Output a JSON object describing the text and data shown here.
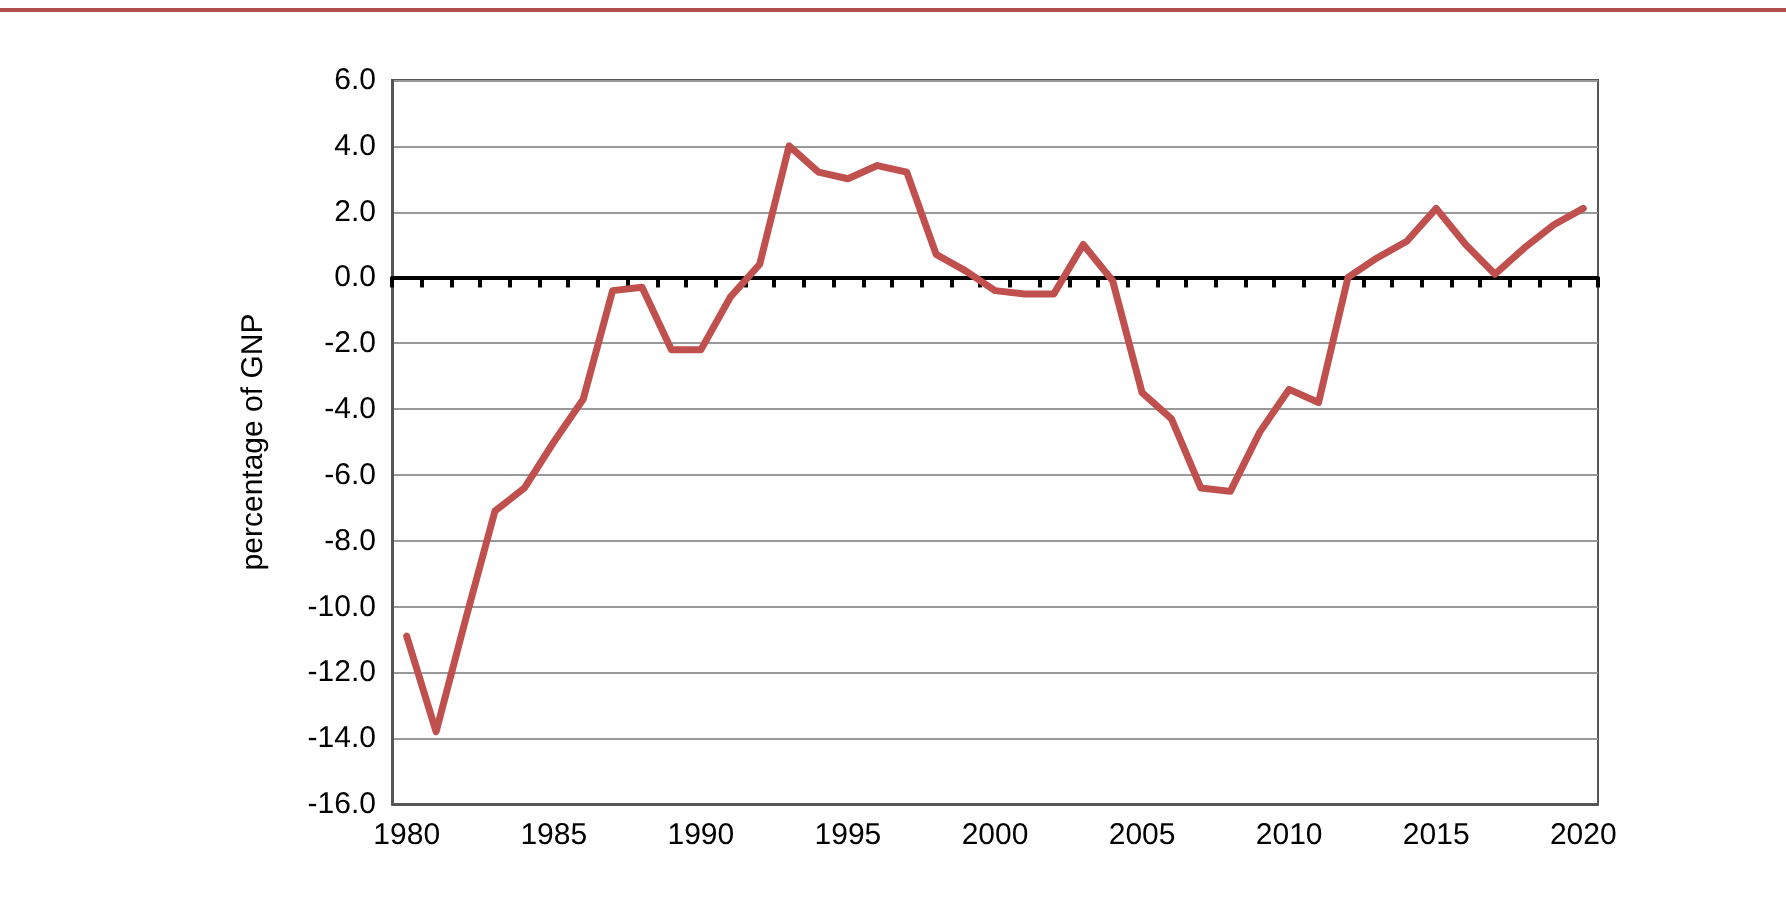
{
  "chart_data": {
    "type": "line",
    "ylabel": "percentage of GNP",
    "x": [
      1980,
      1981,
      1982,
      1983,
      1984,
      1985,
      1986,
      1987,
      1988,
      1989,
      1990,
      1991,
      1992,
      1993,
      1994,
      1995,
      1996,
      1997,
      1998,
      1999,
      2000,
      2001,
      2002,
      2003,
      2004,
      2005,
      2006,
      2007,
      2008,
      2009,
      2010,
      2011,
      2012,
      2013,
      2014,
      2015,
      2016,
      2017,
      2018,
      2019,
      2020
    ],
    "series": [
      {
        "color": "#c0504d",
        "values": [
          -10.9,
          -13.8,
          -10.4,
          -7.1,
          -6.4,
          -5.0,
          -3.7,
          -0.4,
          -0.3,
          -2.2,
          -2.2,
          -0.6,
          0.4,
          4.0,
          3.2,
          3.0,
          3.4,
          3.2,
          0.7,
          0.2,
          -0.4,
          -0.5,
          -0.5,
          1.0,
          -0.1,
          -3.5,
          -4.3,
          -6.4,
          -6.5,
          -4.7,
          -3.4,
          -3.8,
          0.0,
          0.6,
          1.1,
          2.1,
          1.0,
          0.1,
          0.9,
          1.6,
          2.1
        ]
      }
    ],
    "xlim": [
      1979.5,
      2020.5
    ],
    "xticks": [
      1980,
      1985,
      1990,
      1995,
      2000,
      2005,
      2010,
      2015,
      2020,
      {
        "value": 1979.5,
        "label": null
      },
      {
        "value": 1980.5,
        "label": null
      },
      {
        "value": 1981.5,
        "label": null
      },
      {
        "value": 1982.5,
        "label": null
      },
      {
        "value": 1983.5,
        "label": null
      },
      {
        "value": 1984.5,
        "label": null
      },
      {
        "value": 1985.5,
        "label": null
      },
      {
        "value": 1986.5,
        "label": null
      },
      {
        "value": 1987.5,
        "label": null
      },
      {
        "value": 1988.5,
        "label": null
      },
      {
        "value": 1989.5,
        "label": null
      },
      {
        "value": 1990.5,
        "label": null
      },
      {
        "value": 1991.5,
        "label": null
      },
      {
        "value": 1992.5,
        "label": null
      },
      {
        "value": 1993.5,
        "label": null
      },
      {
        "value": 1994.5,
        "label": null
      },
      {
        "value": 1995.5,
        "label": null
      },
      {
        "value": 1996.5,
        "label": null
      },
      {
        "value": 1997.5,
        "label": null
      },
      {
        "value": 1998.5,
        "label": null
      },
      {
        "value": 1999.5,
        "label": null
      },
      {
        "value": 2000.5,
        "label": null
      },
      {
        "value": 2001.5,
        "label": null
      },
      {
        "value": 2002.5,
        "label": null
      },
      {
        "value": 2003.5,
        "label": null
      },
      {
        "value": 2004.5,
        "label": null
      },
      {
        "value": 2005.5,
        "label": null
      },
      {
        "value": 2006.5,
        "label": null
      },
      {
        "value": 2007.5,
        "label": null
      },
      {
        "value": 2008.5,
        "label": null
      },
      {
        "value": 2009.5,
        "label": null
      },
      {
        "value": 2010.5,
        "label": null
      },
      {
        "value": 2011.5,
        "label": null
      },
      {
        "value": 2012.5,
        "label": null
      },
      {
        "value": 2013.5,
        "label": null
      },
      {
        "value": 2014.5,
        "label": null
      },
      {
        "value": 2015.5,
        "label": null
      },
      {
        "value": 2016.5,
        "label": null
      },
      {
        "value": 2017.5,
        "label": null
      },
      {
        "value": 2018.5,
        "label": null
      },
      {
        "value": 2019.5,
        "label": null
      },
      {
        "value": 2020.5,
        "label": null
      }
    ],
    "ylim": [
      -16,
      6
    ],
    "yticks": [
      {
        "value": -16,
        "label": "-16.0"
      },
      {
        "value": -14,
        "label": "-14.0"
      },
      {
        "value": -12,
        "label": "-12.0"
      },
      {
        "value": -10,
        "label": "-10.0"
      },
      {
        "value": -8,
        "label": "-8.0"
      },
      {
        "value": -6,
        "label": "-6.0"
      },
      {
        "value": -4,
        "label": "-4.0"
      },
      {
        "value": -2,
        "label": "-2.0"
      },
      {
        "value": 0,
        "label": "0.0"
      },
      {
        "value": 2,
        "label": "2.0"
      },
      {
        "value": 4,
        "label": "4.0"
      },
      {
        "value": 6,
        "label": "6.0"
      }
    ],
    "grid": "y",
    "marker": "none",
    "line_style": "solid"
  }
}
